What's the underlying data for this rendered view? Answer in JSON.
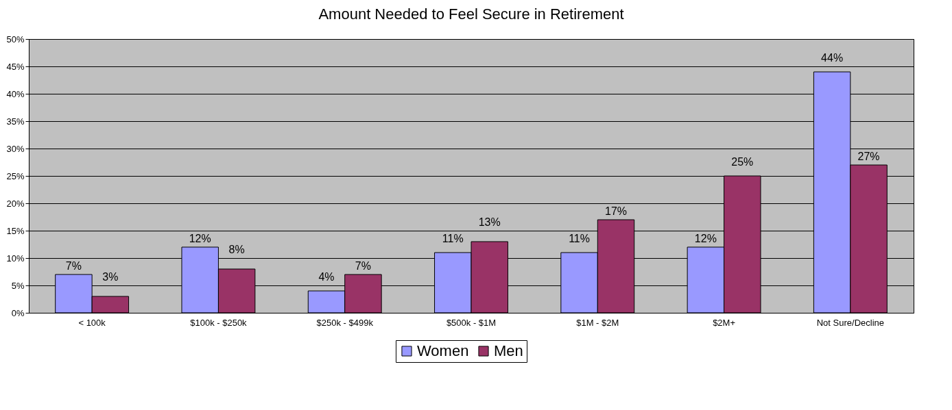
{
  "chart_data": {
    "type": "bar",
    "title": "Amount Needed to Feel Secure in Retirement",
    "categories": [
      "< 100k",
      "$100k - $250k",
      "$250k - $499k",
      "$500k - $1M",
      "$1M - $2M",
      "$2M+",
      "Not Sure/Decline"
    ],
    "series": [
      {
        "name": "Women",
        "color": "#9999ff",
        "values": [
          7,
          12,
          4,
          11,
          11,
          12,
          44
        ],
        "value_labels": [
          "7%",
          "12%",
          "4%",
          "11%",
          "11%",
          "12%",
          "44%"
        ]
      },
      {
        "name": "Men",
        "color": "#993366",
        "values": [
          3,
          8,
          7,
          13,
          17,
          25,
          27
        ],
        "value_labels": [
          "3%",
          "8%",
          "7%",
          "13%",
          "17%",
          "25%",
          "27%"
        ]
      }
    ],
    "ylim": [
      0,
      50
    ],
    "yticks": [
      {
        "value": 0,
        "label": "0%"
      },
      {
        "value": 5,
        "label": "5%"
      },
      {
        "value": 10,
        "label": "10%"
      },
      {
        "value": 15,
        "label": "15%"
      },
      {
        "value": 20,
        "label": "20%"
      },
      {
        "value": 25,
        "label": "25%"
      },
      {
        "value": 30,
        "label": "30%"
      },
      {
        "value": 35,
        "label": "35%"
      },
      {
        "value": 40,
        "label": "40%"
      },
      {
        "value": 45,
        "label": "45%"
      },
      {
        "value": 50,
        "label": "50%"
      }
    ],
    "grid": "y",
    "legend": "bottom"
  }
}
